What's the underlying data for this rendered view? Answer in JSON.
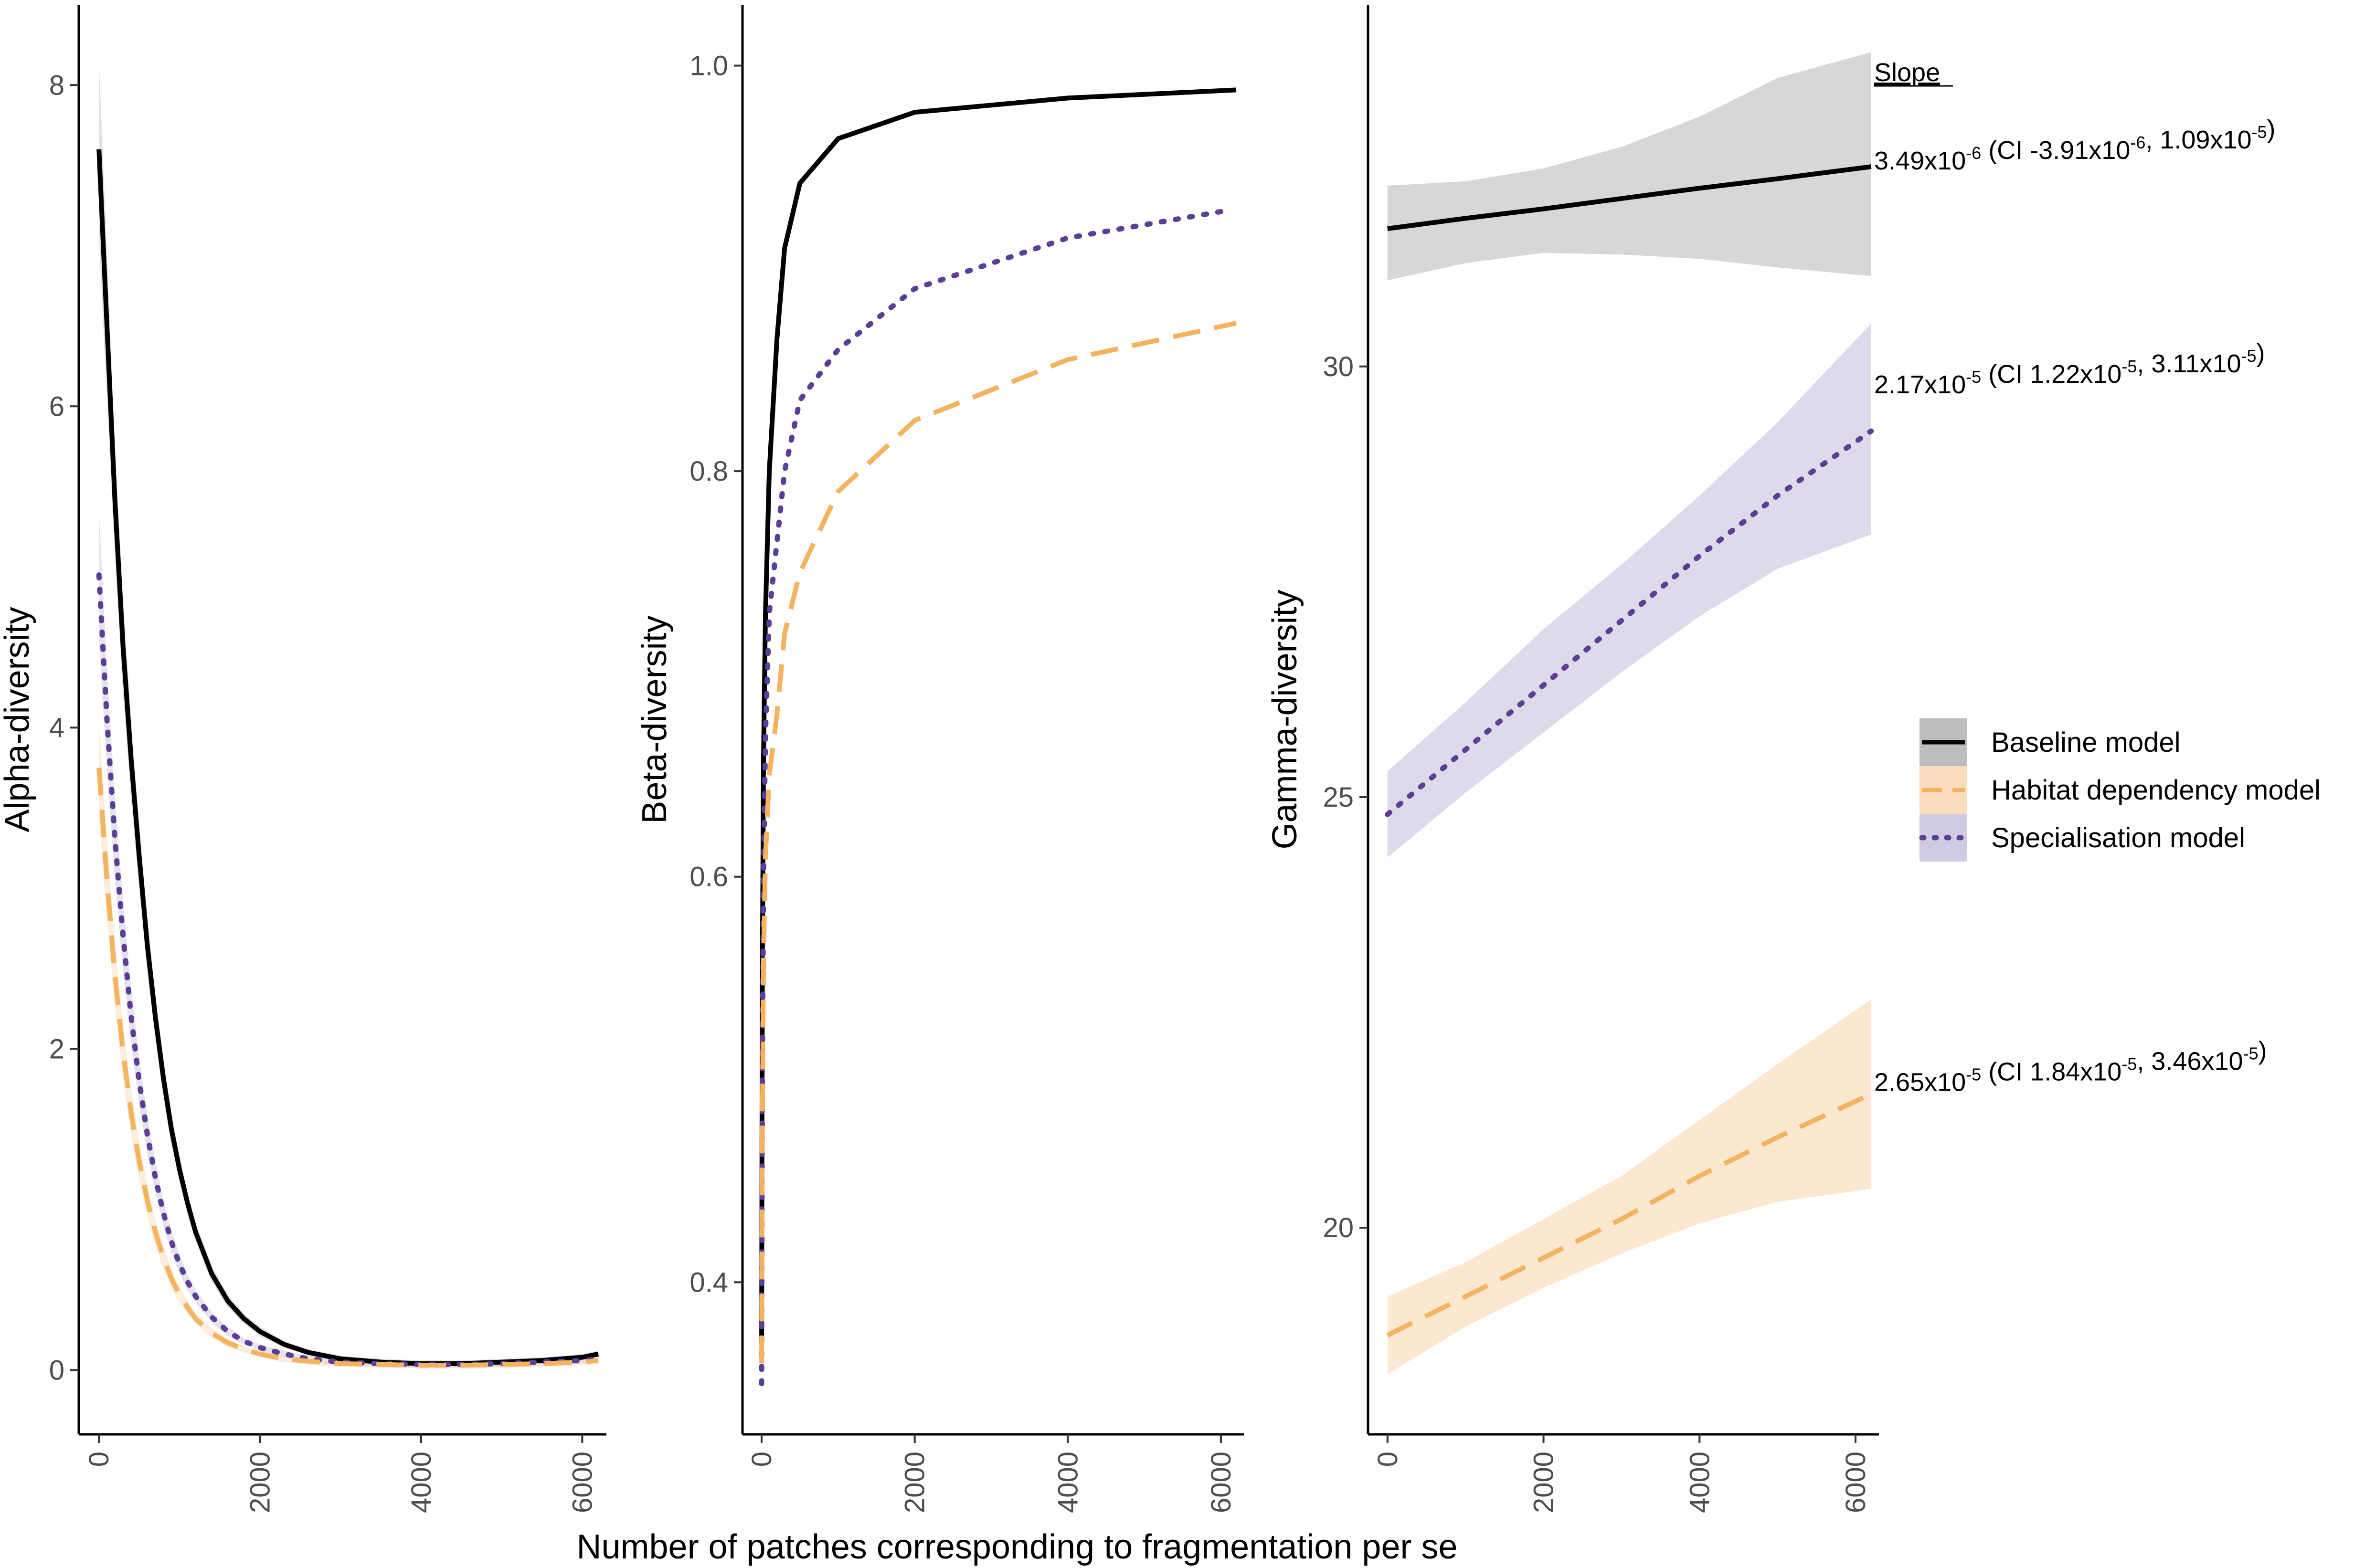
{
  "chart_data": {
    "type": "line",
    "shared_xlabel": "Number of patches corresponding to fragmentation per se",
    "series_styles": {
      "baseline": {
        "name": "Baseline model",
        "color": "#000000",
        "ribbon": "#bdbdbd",
        "dash": "solid"
      },
      "habitat": {
        "name": "Habitat dependency model",
        "color": "#f5b35f",
        "ribbon": "#fad7b3",
        "dash": "dashed"
      },
      "special": {
        "name": "Specialisation model",
        "color": "#5b3f95",
        "ribbon": "#c8c1de",
        "dash": "dotted"
      }
    },
    "panels": [
      {
        "id": "alpha",
        "ylabel": "Alpha-diversity",
        "xlim": [
          -250,
          6300
        ],
        "ylim": [
          -0.4,
          8.5
        ],
        "x_ticks": [
          0,
          2000,
          4000,
          6000
        ],
        "y_ticks": [
          0,
          2,
          4,
          6,
          8
        ],
        "series": [
          {
            "key": "baseline",
            "x": [
              0,
              100,
              200,
              300,
              400,
              500,
              600,
              700,
              800,
              900,
              1000,
              1100,
              1200,
              1400,
              1600,
              1800,
              2000,
              2300,
              2600,
              3000,
              3500,
              4000,
              4500,
              5000,
              5500,
              6000,
              6200
            ],
            "y": [
              7.6,
              6.5,
              5.4,
              4.5,
              3.8,
              3.2,
              2.65,
              2.2,
              1.82,
              1.5,
              1.25,
              1.04,
              0.86,
              0.6,
              0.43,
              0.32,
              0.24,
              0.16,
              0.11,
              0.07,
              0.05,
              0.04,
              0.04,
              0.05,
              0.06,
              0.08,
              0.1
            ],
            "band_width": [
              0.55,
              0.45,
              0.35,
              0.3,
              0.25,
              0.2,
              0.17,
              0.14,
              0.12,
              0.1,
              0.08,
              0.07,
              0.06,
              0.05,
              0.04,
              0.03,
              0.03,
              0.02,
              0.02,
              0.02,
              0.02,
              0.02,
              0.02,
              0.02,
              0.02,
              0.02,
              0.02
            ]
          },
          {
            "key": "special",
            "x": [
              0,
              100,
              200,
              300,
              400,
              500,
              600,
              700,
              800,
              900,
              1000,
              1100,
              1200,
              1400,
              1600,
              1800,
              2000,
              2300,
              2600,
              3000,
              3500,
              4000,
              4500,
              5000,
              5500,
              6000,
              6200
            ],
            "y": [
              4.95,
              4.05,
              3.3,
              2.7,
              2.2,
              1.8,
              1.47,
              1.2,
              0.98,
              0.8,
              0.66,
              0.55,
              0.46,
              0.33,
              0.24,
              0.18,
              0.14,
              0.1,
              0.07,
              0.05,
              0.04,
              0.035,
              0.035,
              0.04,
              0.05,
              0.06,
              0.07
            ],
            "band_width": [
              0.4,
              0.32,
              0.26,
              0.22,
              0.18,
              0.15,
              0.12,
              0.1,
              0.08,
              0.07,
              0.06,
              0.05,
              0.04,
              0.03,
              0.03,
              0.02,
              0.02,
              0.02,
              0.02,
              0.02,
              0.02,
              0.02,
              0.02,
              0.02,
              0.02,
              0.02,
              0.02
            ]
          },
          {
            "key": "habitat",
            "x": [
              0,
              100,
              200,
              300,
              400,
              500,
              600,
              700,
              800,
              900,
              1000,
              1100,
              1200,
              1400,
              1600,
              1800,
              2000,
              2300,
              2600,
              3000,
              3500,
              4000,
              4500,
              5000,
              5500,
              6000,
              6200
            ],
            "y": [
              3.75,
              3.05,
              2.45,
              1.98,
              1.6,
              1.3,
              1.06,
              0.86,
              0.7,
              0.57,
              0.47,
              0.39,
              0.32,
              0.23,
              0.17,
              0.13,
              0.1,
              0.07,
              0.055,
              0.04,
              0.035,
              0.03,
              0.03,
              0.035,
              0.04,
              0.05,
              0.06
            ],
            "band_width": [
              0.3,
              0.25,
              0.2,
              0.17,
              0.14,
              0.12,
              0.1,
              0.08,
              0.07,
              0.06,
              0.05,
              0.04,
              0.035,
              0.03,
              0.025,
              0.02,
              0.02,
              0.02,
              0.02,
              0.02,
              0.02,
              0.02,
              0.02,
              0.02,
              0.02,
              0.02,
              0.02
            ]
          }
        ]
      },
      {
        "id": "beta",
        "ylabel": "Beta-diversity",
        "xlim": [
          -250,
          6300
        ],
        "ylim": [
          0.325,
          1.03
        ],
        "x_ticks": [
          0,
          2000,
          4000,
          6000
        ],
        "y_ticks": [
          0.4,
          0.6,
          0.8,
          1.0
        ],
        "y_tick_labels": [
          "0.4",
          "0.6",
          "0.8",
          "1.0"
        ],
        "series": [
          {
            "key": "baseline",
            "x": [
              0,
              5,
              10,
              25,
              50,
              100,
              200,
              300,
              500,
              1000,
              2000,
              4000,
              6200
            ],
            "y": [
              0.37,
              0.48,
              0.56,
              0.66,
              0.73,
              0.8,
              0.865,
              0.91,
              0.942,
              0.964,
              0.977,
              0.984,
              0.988
            ],
            "band_width": [
              0,
              0,
              0,
              0,
              0,
              0,
              0,
              0,
              0,
              0,
              0,
              0,
              0
            ]
          },
          {
            "key": "special",
            "x": [
              0,
              5,
              10,
              25,
              50,
              100,
              200,
              300,
              500,
              1000,
              2000,
              4000,
              6000
            ],
            "y": [
              0.35,
              0.44,
              0.51,
              0.6,
              0.67,
              0.73,
              0.765,
              0.8,
              0.835,
              0.86,
              0.89,
              0.915,
              0.928
            ],
            "band_width": [
              0,
              0,
              0,
              0,
              0,
              0,
              0,
              0,
              0,
              0,
              0,
              0,
              0
            ]
          },
          {
            "key": "habitat",
            "x": [
              0,
              5,
              10,
              25,
              50,
              100,
              200,
              300,
              500,
              1000,
              2000,
              4000,
              6200
            ],
            "y": [
              0.36,
              0.43,
              0.48,
              0.56,
              0.61,
              0.65,
              0.68,
              0.72,
              0.75,
              0.79,
              0.825,
              0.855,
              0.873
            ],
            "band_width": [
              0,
              0,
              0,
              0,
              0,
              0,
              0,
              0,
              0,
              0,
              0,
              0,
              0
            ]
          }
        ]
      },
      {
        "id": "gamma",
        "ylabel": "Gamma-diversity",
        "xlim": [
          -250,
          6300
        ],
        "ylim": [
          17.6,
          34.2
        ],
        "x_ticks": [
          0,
          2000,
          4000,
          6000
        ],
        "y_ticks": [
          20,
          25,
          30
        ],
        "series": [
          {
            "key": "baseline",
            "x": [
              0,
              1000,
              2000,
              3000,
              4000,
              5000,
              6200
            ],
            "y": [
              31.6,
              31.8,
              31.95,
              32.1,
              32.25,
              32.4,
              32.3
            ],
            "lower": [
              31.0,
              31.2,
              31.32,
              31.3,
              31.25,
              31.15,
              31.05
            ],
            "upper": [
              32.1,
              32.15,
              32.3,
              32.55,
              32.9,
              33.35,
              33.65
            ],
            "line_y": [
              31.6,
              31.72,
              31.83,
              31.95,
              32.07,
              32.18,
              32.32
            ]
          },
          {
            "key": "special",
            "x": [
              0,
              1000,
              2000,
              3000,
              4000,
              5000,
              6200
            ],
            "y": [
              24.8,
              25.6,
              26.3,
              27.0,
              27.7,
              28.4,
              29.25
            ],
            "lower": [
              24.3,
              25.05,
              25.75,
              26.45,
              27.1,
              27.65,
              28.05
            ],
            "upper": [
              25.3,
              26.1,
              26.95,
              27.7,
              28.5,
              29.35,
              30.5
            ],
            "line_y": [
              24.8,
              25.55,
              26.3,
              27.05,
              27.8,
              28.5,
              29.25
            ]
          },
          {
            "key": "habitat",
            "x": [
              0,
              1000,
              2000,
              3000,
              4000,
              5000,
              6200
            ],
            "y": [
              18.75,
              19.2,
              19.65,
              20.15,
              20.65,
              21.05,
              21.55
            ],
            "lower": [
              18.3,
              18.85,
              19.3,
              19.7,
              20.05,
              20.3,
              20.45
            ],
            "upper": [
              19.2,
              19.6,
              20.1,
              20.6,
              21.25,
              21.9,
              22.65
            ],
            "line_y": [
              18.75,
              19.2,
              19.65,
              20.1,
              20.6,
              21.05,
              21.55
            ]
          }
        ],
        "slope_header": "Slope",
        "slope_annotations": [
          {
            "key": "baseline",
            "anchor_y": 32.4,
            "value": "3.49x10",
            "value_exp": "-6",
            "ci_open": " (CI -3.91x10",
            "ci_low_exp": "-6",
            "ci_sep": ", 1.09x10",
            "ci_high_exp": "-5",
            "ci_close": ")"
          },
          {
            "key": "special",
            "anchor_y": 29.8,
            "value": "2.17x10",
            "value_exp": "-5",
            "ci_open": " (CI 1.22x10",
            "ci_low_exp": "-5",
            "ci_sep": ", 3.11x10",
            "ci_high_exp": "-5",
            "ci_close": ")"
          },
          {
            "key": "habitat",
            "anchor_y": 21.7,
            "value": "2.65x10",
            "value_exp": "-5",
            "ci_open": " (CI 1.84x10",
            "ci_low_exp": "-5",
            "ci_sep": ", 3.46x10",
            "ci_high_exp": "-5",
            "ci_close": ")"
          }
        ]
      }
    ],
    "legend": {
      "position": "right",
      "entries": [
        "Baseline model",
        "Habitat dependency model",
        "Specialisation model"
      ]
    }
  }
}
